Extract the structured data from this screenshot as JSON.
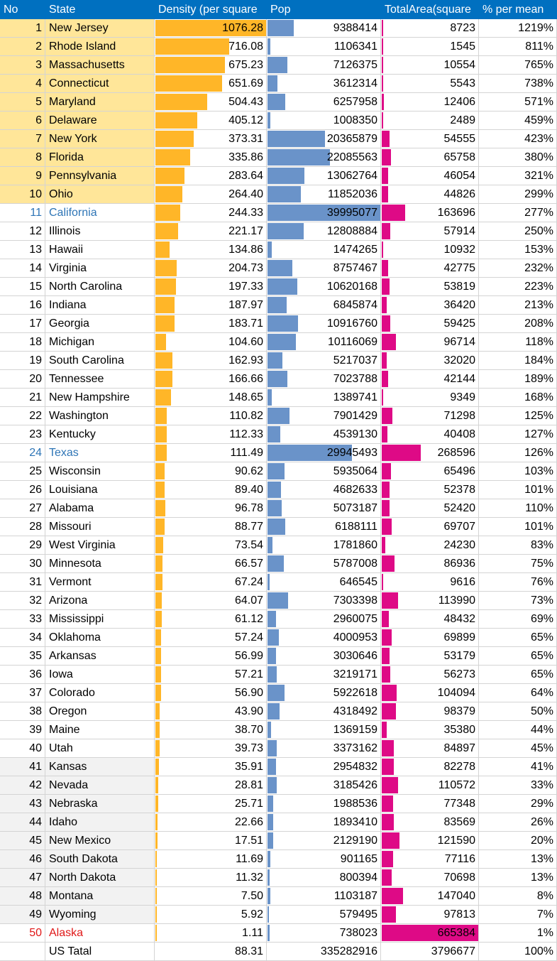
{
  "header": {
    "no": "No",
    "state": "State",
    "density": "Density (per square",
    "pop": "Pop",
    "area": "TotalArea(square",
    "pct": "% per mean"
  },
  "colors": {
    "header_bg": "#0070c0",
    "density_bar": "#ffb628",
    "pop_bar": "#6a93c9",
    "area_bar": "#de0a86",
    "highlight_top": "#ffe699",
    "highlight_bottom": "#f2f2f2",
    "highlight_blue_text": "#2e75b6",
    "highlight_red_text": "#e01818"
  },
  "rows": [
    {
      "no": "1",
      "state": "New Jersey",
      "density": "1076.28",
      "pop": "9388414",
      "area": "8723",
      "pct": "1219%"
    },
    {
      "no": "2",
      "state": "Rhode Island",
      "density": "716.08",
      "pop": "1106341",
      "area": "1545",
      "pct": "811%"
    },
    {
      "no": "3",
      "state": "Massachusetts",
      "density": "675.23",
      "pop": "7126375",
      "area": "10554",
      "pct": "765%"
    },
    {
      "no": "4",
      "state": "Connecticut",
      "density": "651.69",
      "pop": "3612314",
      "area": "5543",
      "pct": "738%"
    },
    {
      "no": "5",
      "state": "Maryland",
      "density": "504.43",
      "pop": "6257958",
      "area": "12406",
      "pct": "571%"
    },
    {
      "no": "6",
      "state": "Delaware",
      "density": "405.12",
      "pop": "1008350",
      "area": "2489",
      "pct": "459%"
    },
    {
      "no": "7",
      "state": "New York",
      "density": "373.31",
      "pop": "20365879",
      "area": "54555",
      "pct": "423%"
    },
    {
      "no": "8",
      "state": "Florida",
      "density": "335.86",
      "pop": "22085563",
      "area": "65758",
      "pct": "380%"
    },
    {
      "no": "9",
      "state": "Pennsylvania",
      "density": "283.64",
      "pop": "13062764",
      "area": "46054",
      "pct": "321%"
    },
    {
      "no": "10",
      "state": "Ohio",
      "density": "264.40",
      "pop": "11852036",
      "area": "44826",
      "pct": "299%"
    },
    {
      "no": "11",
      "state": "California",
      "density": "244.33",
      "pop": "39995077",
      "area": "163696",
      "pct": "277%"
    },
    {
      "no": "12",
      "state": "Illinois",
      "density": "221.17",
      "pop": "12808884",
      "area": "57914",
      "pct": "250%"
    },
    {
      "no": "13",
      "state": "Hawaii",
      "density": "134.86",
      "pop": "1474265",
      "area": "10932",
      "pct": "153%"
    },
    {
      "no": "14",
      "state": "Virginia",
      "density": "204.73",
      "pop": "8757467",
      "area": "42775",
      "pct": "232%"
    },
    {
      "no": "15",
      "state": "North Carolina",
      "density": "197.33",
      "pop": "10620168",
      "area": "53819",
      "pct": "223%"
    },
    {
      "no": "16",
      "state": "Indiana",
      "density": "187.97",
      "pop": "6845874",
      "area": "36420",
      "pct": "213%"
    },
    {
      "no": "17",
      "state": "Georgia",
      "density": "183.71",
      "pop": "10916760",
      "area": "59425",
      "pct": "208%"
    },
    {
      "no": "18",
      "state": "Michigan",
      "density": "104.60",
      "pop": "10116069",
      "area": "96714",
      "pct": "118%"
    },
    {
      "no": "19",
      "state": "South Carolina",
      "density": "162.93",
      "pop": "5217037",
      "area": "32020",
      "pct": "184%"
    },
    {
      "no": "20",
      "state": "Tennessee",
      "density": "166.66",
      "pop": "7023788",
      "area": "42144",
      "pct": "189%"
    },
    {
      "no": "21",
      "state": "New Hampshire",
      "density": "148.65",
      "pop": "1389741",
      "area": "9349",
      "pct": "168%"
    },
    {
      "no": "22",
      "state": "Washington",
      "density": "110.82",
      "pop": "7901429",
      "area": "71298",
      "pct": "125%"
    },
    {
      "no": "23",
      "state": "Kentucky",
      "density": "112.33",
      "pop": "4539130",
      "area": "40408",
      "pct": "127%"
    },
    {
      "no": "24",
      "state": "Texas",
      "density": "111.49",
      "pop": "29945493",
      "area": "268596",
      "pct": "126%"
    },
    {
      "no": "25",
      "state": "Wisconsin",
      "density": "90.62",
      "pop": "5935064",
      "area": "65496",
      "pct": "103%"
    },
    {
      "no": "26",
      "state": "Louisiana",
      "density": "89.40",
      "pop": "4682633",
      "area": "52378",
      "pct": "101%"
    },
    {
      "no": "27",
      "state": "Alabama",
      "density": "96.78",
      "pop": "5073187",
      "area": "52420",
      "pct": "110%"
    },
    {
      "no": "28",
      "state": "Missouri",
      "density": "88.77",
      "pop": "6188111",
      "area": "69707",
      "pct": "101%"
    },
    {
      "no": "29",
      "state": "West Virginia",
      "density": "73.54",
      "pop": "1781860",
      "area": "24230",
      "pct": "83%"
    },
    {
      "no": "30",
      "state": "Minnesota",
      "density": "66.57",
      "pop": "5787008",
      "area": "86936",
      "pct": "75%"
    },
    {
      "no": "31",
      "state": "Vermont",
      "density": "67.24",
      "pop": "646545",
      "area": "9616",
      "pct": "76%"
    },
    {
      "no": "32",
      "state": "Arizona",
      "density": "64.07",
      "pop": "7303398",
      "area": "113990",
      "pct": "73%"
    },
    {
      "no": "33",
      "state": "Mississippi",
      "density": "61.12",
      "pop": "2960075",
      "area": "48432",
      "pct": "69%"
    },
    {
      "no": "34",
      "state": "Oklahoma",
      "density": "57.24",
      "pop": "4000953",
      "area": "69899",
      "pct": "65%"
    },
    {
      "no": "35",
      "state": "Arkansas",
      "density": "56.99",
      "pop": "3030646",
      "area": "53179",
      "pct": "65%"
    },
    {
      "no": "36",
      "state": "Iowa",
      "density": "57.21",
      "pop": "3219171",
      "area": "56273",
      "pct": "65%"
    },
    {
      "no": "37",
      "state": "Colorado",
      "density": "56.90",
      "pop": "5922618",
      "area": "104094",
      "pct": "64%"
    },
    {
      "no": "38",
      "state": "Oregon",
      "density": "43.90",
      "pop": "4318492",
      "area": "98379",
      "pct": "50%"
    },
    {
      "no": "39",
      "state": "Maine",
      "density": "38.70",
      "pop": "1369159",
      "area": "35380",
      "pct": "44%"
    },
    {
      "no": "40",
      "state": "Utah",
      "density": "39.73",
      "pop": "3373162",
      "area": "84897",
      "pct": "45%"
    },
    {
      "no": "41",
      "state": "Kansas",
      "density": "35.91",
      "pop": "2954832",
      "area": "82278",
      "pct": "41%"
    },
    {
      "no": "42",
      "state": "Nevada",
      "density": "28.81",
      "pop": "3185426",
      "area": "110572",
      "pct": "33%"
    },
    {
      "no": "43",
      "state": "Nebraska",
      "density": "25.71",
      "pop": "1988536",
      "area": "77348",
      "pct": "29%"
    },
    {
      "no": "44",
      "state": "Idaho",
      "density": "22.66",
      "pop": "1893410",
      "area": "83569",
      "pct": "26%"
    },
    {
      "no": "45",
      "state": "New Mexico",
      "density": "17.51",
      "pop": "2129190",
      "area": "121590",
      "pct": "20%"
    },
    {
      "no": "46",
      "state": "South Dakota",
      "density": "11.69",
      "pop": "901165",
      "area": "77116",
      "pct": "13%"
    },
    {
      "no": "47",
      "state": "North Dakota",
      "density": "11.32",
      "pop": "800394",
      "area": "70698",
      "pct": "13%"
    },
    {
      "no": "48",
      "state": "Montana",
      "density": "7.50",
      "pop": "1103187",
      "area": "147040",
      "pct": "8%"
    },
    {
      "no": "49",
      "state": "Wyoming",
      "density": "5.92",
      "pop": "579495",
      "area": "97813",
      "pct": "7%"
    },
    {
      "no": "50",
      "state": "Alaska",
      "density": "1.11",
      "pop": "738023",
      "area": "665384",
      "pct": "1%"
    }
  ],
  "total": {
    "no": "",
    "state": "US Tatal",
    "density": "88.31",
    "pop": "335282916",
    "area": "3796677",
    "pct": "100%"
  }
}
